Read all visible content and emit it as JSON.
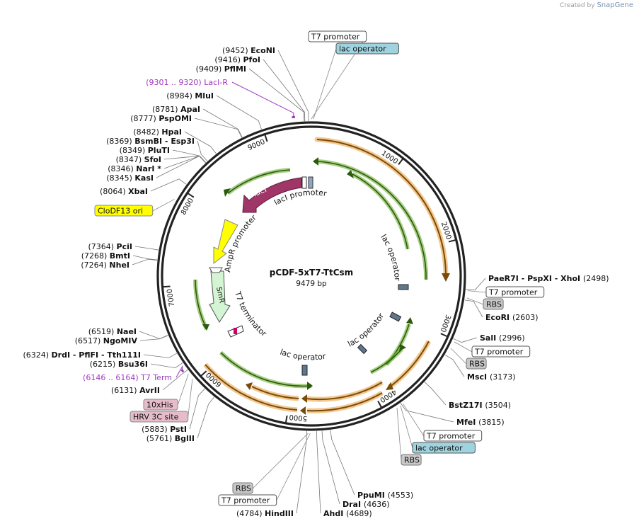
{
  "brand": {
    "created_by": "Created by",
    "name": "SnapGene"
  },
  "plasmid": {
    "name": "pCDF-5xT7-TtCsm",
    "length": 9479,
    "length_label": "9479 bp"
  },
  "ruler_labels": [
    "1000",
    "2000",
    "3000",
    "4000",
    "5000",
    "6000",
    "7000",
    "8000",
    "9000"
  ],
  "colors": {
    "backbone": "#222222",
    "gene_green": "#6aad2e",
    "gene_orange": "#e89a33",
    "lacI": "#a03567",
    "clodf13": "#ffff00",
    "smr": "#d4f5d4",
    "lac_operator_bg": "#9fd3df",
    "rbs_bg": "#c8c8c8",
    "tag_bg": "#e6bccb",
    "primer": "#a038c0"
  },
  "arc_labels": {
    "lacI": "lacI",
    "lacI_promoter": "lacI promoter",
    "AmpR_promoter": "AmpR promoter",
    "SmR": "SmR",
    "T7_terminator": "T7 terminator",
    "lac_operator_1": "lac operator",
    "lac_operator_2": "lac operator",
    "lac_operator_3": "lac operator"
  },
  "features": [
    {
      "id": "t7p-top",
      "label": "T7 promoter",
      "pos": 9479,
      "style": "white"
    },
    {
      "id": "lacop-top",
      "label": "lac operator",
      "pos": 20,
      "style": "lac"
    },
    {
      "id": "ori",
      "label": "CloDF13 ori",
      "pos": 7880,
      "style": "ori"
    },
    {
      "id": "t7p-r1",
      "label": "T7 promoter",
      "pos": 2510,
      "style": "white"
    },
    {
      "id": "rbs-r1",
      "label": "RBS",
      "pos": 2580,
      "style": "rbs"
    },
    {
      "id": "t7p-r2",
      "label": "T7 promoter",
      "pos": 3020,
      "style": "white"
    },
    {
      "id": "rbs-r2",
      "label": "RBS",
      "pos": 3090,
      "style": "rbs"
    },
    {
      "id": "t7p-r3",
      "label": "T7 promoter",
      "pos": 3800,
      "style": "white"
    },
    {
      "id": "lacop-r3",
      "label": "lac operator",
      "pos": 3830,
      "style": "lac"
    },
    {
      "id": "rbs-r3",
      "label": "RBS",
      "pos": 3870,
      "style": "rbs"
    },
    {
      "id": "rbs-b",
      "label": "RBS",
      "pos": 4770,
      "style": "rbs"
    },
    {
      "id": "t7p-b",
      "label": "T7 promoter",
      "pos": 4750,
      "style": "white"
    },
    {
      "id": "his",
      "label": "10xHis",
      "pos": 6095,
      "style": "tag"
    },
    {
      "id": "hrv",
      "label": "HRV 3C site",
      "pos": 6035,
      "style": "tag"
    }
  ],
  "primers": [
    {
      "id": "laci-r",
      "coord": "(9301 .. 9320)",
      "label": "LacI-R",
      "pos": 9310
    },
    {
      "id": "t7term",
      "coord": "(6146 .. 6164)",
      "label": "T7 Term",
      "pos": 6155
    }
  ],
  "sites": [
    {
      "name": "EcoNI",
      "coord": "(9452)",
      "pos": 9452,
      "side": "L"
    },
    {
      "name": "PfoI",
      "coord": "(9416)",
      "pos": 9416,
      "side": "L"
    },
    {
      "name": "PflMI",
      "coord": "(9409)",
      "pos": 9409,
      "side": "L"
    },
    {
      "name": "MluI",
      "coord": "(8984)",
      "pos": 8984,
      "side": "L"
    },
    {
      "name": "ApaI",
      "coord": "(8781)",
      "pos": 8781,
      "side": "L"
    },
    {
      "name": "PspOMI",
      "coord": "(8777)",
      "pos": 8777,
      "side": "L"
    },
    {
      "name": "HpaI",
      "coord": "(8482)",
      "pos": 8482,
      "side": "L"
    },
    {
      "name": "BsmBI   - Esp3I",
      "coord": "(8369)",
      "pos": 8369,
      "side": "L"
    },
    {
      "name": "PluTI",
      "coord": "(8349)",
      "pos": 8349,
      "side": "L"
    },
    {
      "name": "SfoI",
      "coord": "(8347)",
      "pos": 8347,
      "side": "L"
    },
    {
      "name": "NarI *",
      "coord": "(8346)",
      "pos": 8346,
      "side": "L"
    },
    {
      "name": "KasI",
      "coord": "(8345)",
      "pos": 8345,
      "side": "L"
    },
    {
      "name": "XbaI",
      "coord": "(8064)",
      "pos": 8064,
      "side": "L"
    },
    {
      "name": "PciI",
      "coord": "(7364)",
      "pos": 7364,
      "side": "L"
    },
    {
      "name": "BmtI",
      "coord": "(7268)",
      "pos": 7268,
      "side": "L"
    },
    {
      "name": "NheI",
      "coord": "(7264)",
      "pos": 7264,
      "side": "L"
    },
    {
      "name": "NaeI",
      "coord": "(6519)",
      "pos": 6519,
      "side": "L"
    },
    {
      "name": "NgoMIV",
      "coord": "(6517)",
      "pos": 6517,
      "side": "L"
    },
    {
      "name": "DrdI   - PflFI   - Tth111I",
      "coord": "(6324)",
      "pos": 6324,
      "side": "L"
    },
    {
      "name": "Bsu36I",
      "coord": "(6215)",
      "pos": 6215,
      "side": "L"
    },
    {
      "name": "AvrII",
      "coord": "(6131)",
      "pos": 6131,
      "side": "L"
    },
    {
      "name": "PstI",
      "coord": "(5883)",
      "pos": 5883,
      "side": "L"
    },
    {
      "name": "BglII",
      "coord": "(5761)",
      "pos": 5761,
      "side": "L"
    },
    {
      "name": "HindIII",
      "coord": "(4784)",
      "pos": 4784,
      "side": "L"
    },
    {
      "name": "AhdI",
      "coord": "(4689)",
      "pos": 4689,
      "side": "R"
    },
    {
      "name": "DraI",
      "coord": "(4636)",
      "pos": 4636,
      "side": "R"
    },
    {
      "name": "PpuMI",
      "coord": "(4553)",
      "pos": 4553,
      "side": "R"
    },
    {
      "name": "MfeI",
      "coord": "(3815)",
      "pos": 3815,
      "side": "R"
    },
    {
      "name": "BstZ17I",
      "coord": "(3504)",
      "pos": 3504,
      "side": "R"
    },
    {
      "name": "MscI",
      "coord": "(3173)",
      "pos": 3173,
      "side": "R"
    },
    {
      "name": "SalI",
      "coord": "(2996)",
      "pos": 2996,
      "side": "R"
    },
    {
      "name": "EcoRI",
      "coord": "(2603)",
      "pos": 2603,
      "side": "R"
    },
    {
      "name": "PaeR7I   - PspXI   - XhoI",
      "coord": "(2498)",
      "pos": 2498,
      "side": "R"
    }
  ]
}
